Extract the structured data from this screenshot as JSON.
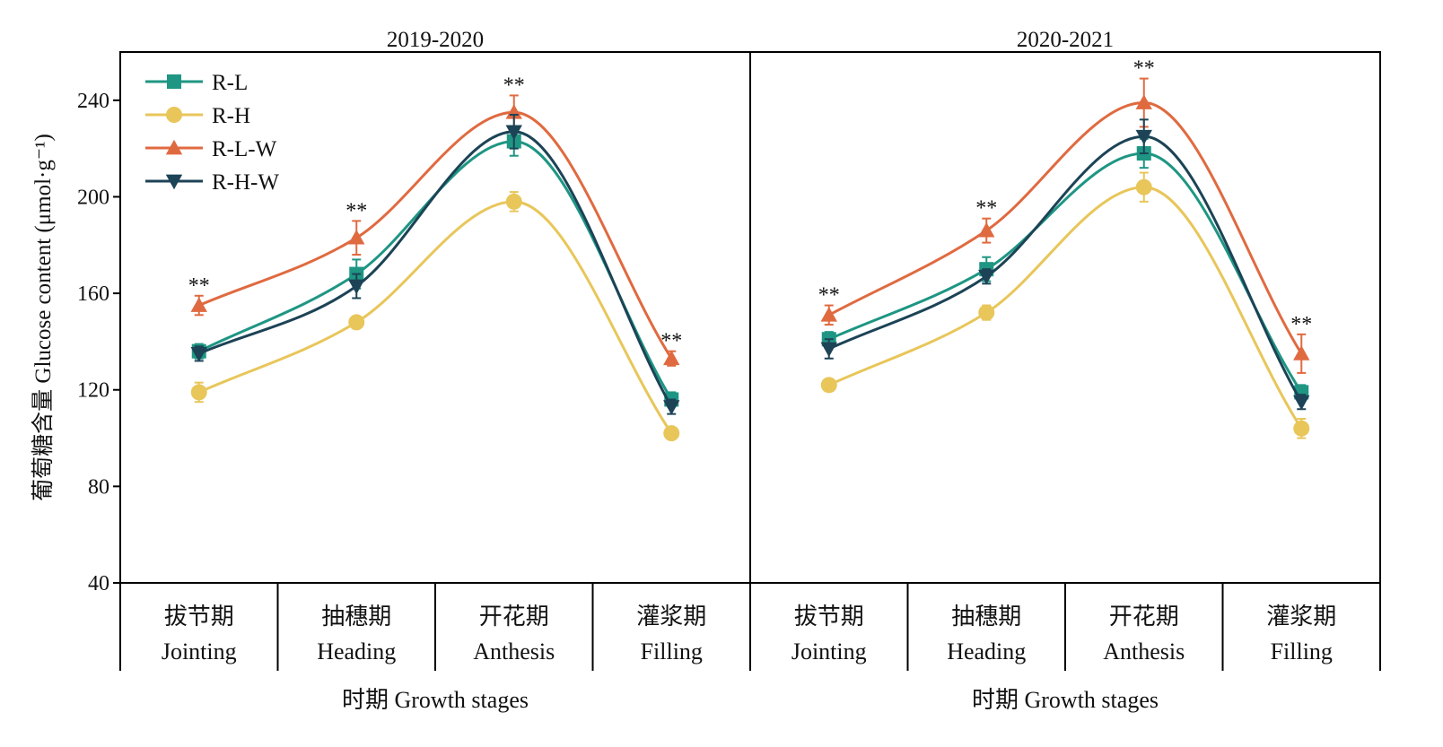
{
  "chart_data": {
    "type": "line",
    "ylabel": "葡萄糖含量 Glucose content (μmol·g⁻¹)",
    "ylim": [
      40,
      260
    ],
    "yticks": [
      40,
      80,
      120,
      160,
      200,
      240
    ],
    "xlabel": "时期 Growth stages",
    "categories": [
      {
        "cn": "拔节期",
        "en": "Jointing"
      },
      {
        "cn": "抽穗期",
        "en": "Heading"
      },
      {
        "cn": "开花期",
        "en": "Anthesis"
      },
      {
        "cn": "灌浆期",
        "en": "Filling"
      }
    ],
    "legend_position": "top-left",
    "significance_label": "**",
    "series_styles": [
      {
        "name": "R-L",
        "color": "#1e9683",
        "marker": "square"
      },
      {
        "name": "R-H",
        "color": "#e8c65a",
        "marker": "circle"
      },
      {
        "name": "R-L-W",
        "color": "#e06a40",
        "marker": "triangle-up"
      },
      {
        "name": "R-H-W",
        "color": "#1c4356",
        "marker": "triangle-down"
      }
    ],
    "panels": [
      {
        "title": "2019-2020",
        "series": [
          {
            "name": "R-L",
            "values": [
              136,
              168,
              223,
              116
            ],
            "errors": [
              3,
              6,
              6,
              3
            ]
          },
          {
            "name": "R-H",
            "values": [
              119,
              148,
              198,
              102
            ],
            "errors": [
              4,
              2,
              4,
              2
            ]
          },
          {
            "name": "R-L-W",
            "values": [
              155,
              183,
              235,
              133
            ],
            "errors": [
              4,
              7,
              7,
              3
            ]
          },
          {
            "name": "R-H-W",
            "values": [
              135,
              163,
              227,
              113
            ],
            "errors": [
              3,
              5,
              7,
              3
            ]
          }
        ],
        "significance": [
          "**",
          "**",
          "**",
          "**"
        ]
      },
      {
        "title": "2020-2021",
        "series": [
          {
            "name": "R-L",
            "values": [
              141,
              170,
              218,
              119
            ],
            "errors": [
              3,
              5,
              6,
              3
            ]
          },
          {
            "name": "R-H",
            "values": [
              122,
              152,
              204,
              104
            ],
            "errors": [
              2,
              3,
              6,
              4
            ]
          },
          {
            "name": "R-L-W",
            "values": [
              151,
              186,
              239,
              135
            ],
            "errors": [
              4,
              5,
              10,
              8
            ]
          },
          {
            "name": "R-H-W",
            "values": [
              137,
              167,
              225,
              115
            ],
            "errors": [
              4,
              3,
              7,
              3
            ]
          }
        ],
        "significance": [
          "**",
          "**",
          "**",
          "**"
        ]
      }
    ]
  }
}
